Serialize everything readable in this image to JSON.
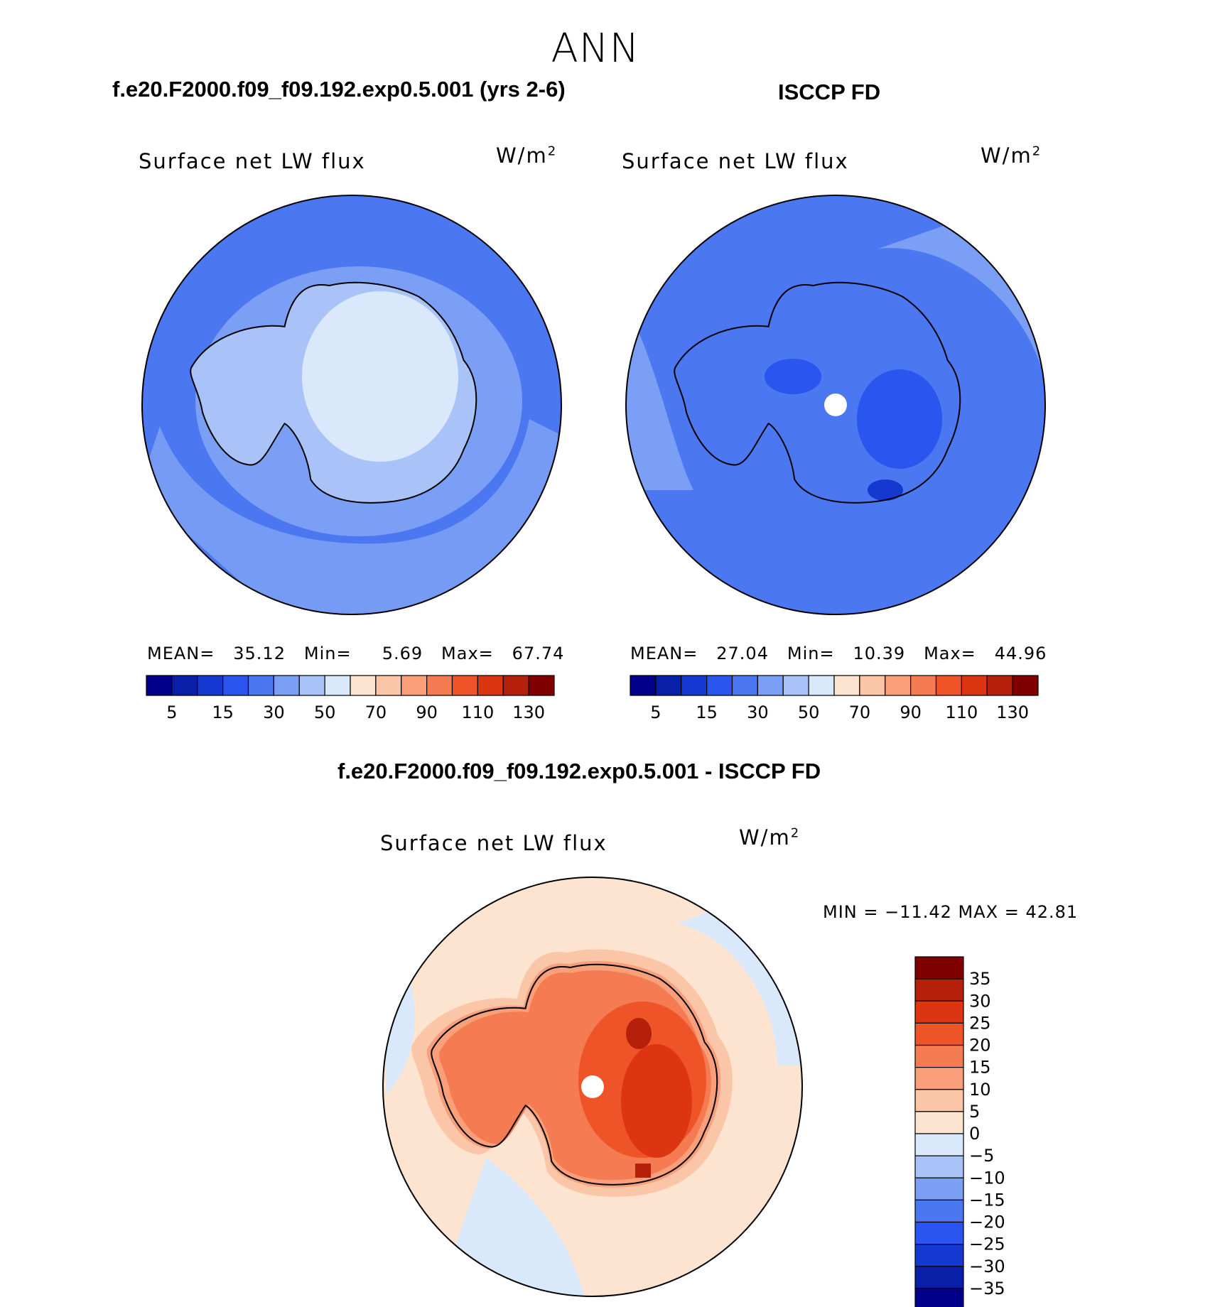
{
  "page_title": "ANN",
  "panels": [
    {
      "title": "f.e20.F2000.f09_f09.192.exp0.5.001 (yrs 2-6)",
      "variable": "Surface net LW flux",
      "units": "W/m",
      "units_sup": "2",
      "stats": {
        "mean_label": "MEAN=",
        "mean": "35.12",
        "min_label": "Min=",
        "min": "5.69",
        "max_label": "Max=",
        "max": "67.74"
      }
    },
    {
      "title": "ISCCP FD",
      "variable": "Surface net LW flux",
      "units": "W/m",
      "units_sup": "2",
      "stats": {
        "mean_label": "MEAN=",
        "mean": "27.04",
        "min_label": "Min=",
        "min": "10.39",
        "max_label": "Max=",
        "max": "44.96"
      }
    }
  ],
  "diff_panel": {
    "title": "f.e20.F2000.f09_f09.192.exp0.5.001 - ISCCP FD",
    "variable": "Surface net LW flux",
    "units": "W/m",
    "units_sup": "2",
    "minmax": "MIN = −11.42 MAX =   42.81"
  },
  "chart_data": [
    {
      "type": "heatmap",
      "projection": "south polar stereographic",
      "title": "f.e20.F2000.f09_f09.192.exp0.5.001 (yrs 2-6)",
      "variable": "Surface net LW flux",
      "units": "W/m2",
      "mean": 35.12,
      "min": 5.69,
      "max": 67.74,
      "colorbar_levels": [
        5,
        10,
        15,
        20,
        30,
        40,
        50,
        60,
        70,
        80,
        90,
        100,
        110,
        120,
        130
      ],
      "colorbar_tick_labels": [
        "5",
        "15",
        "30",
        "50",
        "70",
        "90",
        "110",
        "130"
      ],
      "colorbar_colors": [
        "#00008b",
        "#0a1fa8",
        "#1438d0",
        "#2a55ee",
        "#4b77f0",
        "#7b9ff5",
        "#a9c3f8",
        "#d9e8fb",
        "#fde4d0",
        "#fbc5a8",
        "#f9a07a",
        "#f57b52",
        "#ef5328",
        "#dd3511",
        "#b5200a",
        "#800000"
      ]
    },
    {
      "type": "heatmap",
      "projection": "south polar stereographic",
      "title": "ISCCP FD",
      "variable": "Surface net LW flux",
      "units": "W/m2",
      "mean": 27.04,
      "min": 10.39,
      "max": 44.96,
      "colorbar_levels": [
        5,
        10,
        15,
        20,
        30,
        40,
        50,
        60,
        70,
        80,
        90,
        100,
        110,
        120,
        130
      ],
      "colorbar_tick_labels": [
        "5",
        "15",
        "30",
        "50",
        "70",
        "90",
        "110",
        "130"
      ],
      "colorbar_colors": [
        "#00008b",
        "#0a1fa8",
        "#1438d0",
        "#2a55ee",
        "#4b77f0",
        "#7b9ff5",
        "#a9c3f8",
        "#d9e8fb",
        "#fde4d0",
        "#fbc5a8",
        "#f9a07a",
        "#f57b52",
        "#ef5328",
        "#dd3511",
        "#b5200a",
        "#800000"
      ]
    },
    {
      "type": "heatmap",
      "projection": "south polar stereographic",
      "title": "f.e20.F2000.f09_f09.192.exp0.5.001 - ISCCP FD",
      "variable": "Surface net LW flux",
      "units": "W/m2",
      "min": -11.42,
      "max": 42.81,
      "colorbar_levels": [
        35,
        30,
        25,
        20,
        15,
        10,
        5,
        0,
        -5,
        -10,
        -15,
        -20,
        -25,
        -30,
        -35
      ],
      "colorbar_tick_labels": [
        "35",
        "30",
        "25",
        "20",
        "15",
        "10",
        "5",
        "0",
        "−5",
        "−10",
        "−15",
        "−20",
        "−25",
        "−30",
        "−35"
      ],
      "colorbar_colors": [
        "#800000",
        "#b5200a",
        "#dd3511",
        "#ef5328",
        "#f57b52",
        "#f9a07a",
        "#fbc5a8",
        "#fde4d0",
        "#d9e8fb",
        "#a9c3f8",
        "#7b9ff5",
        "#4b77f0",
        "#2a55ee",
        "#1438d0",
        "#0a1fa8",
        "#00008b"
      ]
    }
  ]
}
